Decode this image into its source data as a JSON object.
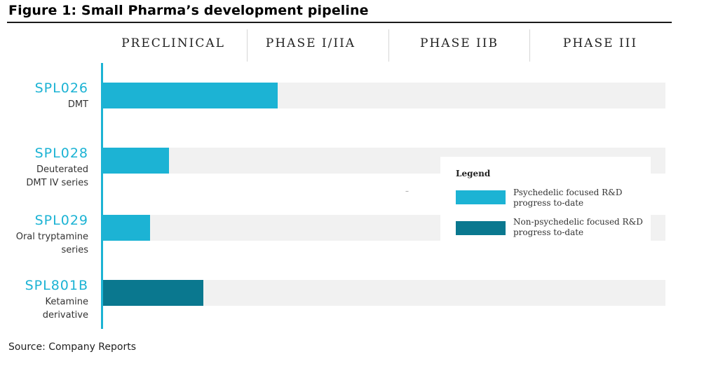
{
  "figure": {
    "title": "Figure 1: Small Pharma’s development pipeline",
    "source": "Source: Company Reports"
  },
  "colors": {
    "psychedelic": "#1cb3d4",
    "non_psychedelic": "#0a788f",
    "track": "#f1f1f1"
  },
  "chart_data": {
    "type": "bar",
    "orientation": "horizontal",
    "phases": [
      "PRECLINICAL",
      "PHASE I/IIA",
      "PHASE IIB",
      "PHASE III"
    ],
    "progress_unit": "fraction of full pipeline (0 = start of preclinical, 1 = end of phase III)",
    "candidates": [
      {
        "code": "SPL026",
        "description": [
          "DMT"
        ],
        "progress": 0.31,
        "category": "psychedelic"
      },
      {
        "code": "SPL028",
        "description": [
          "Deuterated",
          "DMT IV series"
        ],
        "progress": 0.117,
        "category": "psychedelic"
      },
      {
        "code": "SPL029",
        "description": [
          "Oral tryptamine",
          "series"
        ],
        "progress": 0.084,
        "category": "psychedelic"
      },
      {
        "code": "SPL801B",
        "description": [
          "Ketamine",
          "derivative"
        ],
        "progress": 0.178,
        "category": "non_psychedelic"
      }
    ],
    "legend": {
      "title": "Legend",
      "placement": "right-middle",
      "entries": [
        {
          "key": "psychedelic",
          "label_lines": [
            "Psychedelic focused R&D",
            "progress to-date"
          ]
        },
        {
          "key": "non_psychedelic",
          "label_lines": [
            "Non-psychedelic focused R&D",
            "progress to-date"
          ]
        }
      ]
    }
  }
}
